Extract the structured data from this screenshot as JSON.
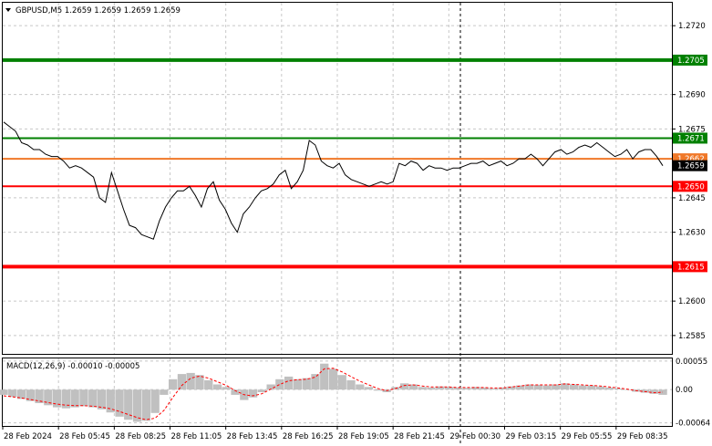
{
  "header": {
    "symbol_line": "GBPUSD,M5  1.2659 1.2659 1.2659 1.2659"
  },
  "macd": {
    "label": "MACD(12,26,9) -0.00010 -0.00005"
  },
  "colors": {
    "background": "#ffffff",
    "price_line": "#000000",
    "strong_resistance": "#008000",
    "resistance": "#008000",
    "support": "#ff0000",
    "strong_support": "#ff0000",
    "last_price_line": "#f07828",
    "macd_histogram": "#c0c0c0",
    "macd_signal": "#ff0000"
  },
  "chart_data": [
    {
      "type": "line",
      "title": "GBPUSD,M5",
      "xlabel": "",
      "ylabel": "",
      "ylim": [
        1.2577,
        1.273
      ],
      "yticks": [
        1.272,
        1.269,
        1.2675,
        1.2645,
        1.263,
        1.26,
        1.2585
      ],
      "x_tick_labels": [
        "28 Feb 2024",
        "28 Feb 05:45",
        "28 Feb 08:25",
        "28 Feb 11:05",
        "28 Feb 13:45",
        "28 Feb 16:25",
        "28 Feb 19:05",
        "28 Feb 21:45",
        "29 Feb 00:30",
        "29 Feb 03:15",
        "29 Feb 05:55",
        "29 Feb 08:35"
      ],
      "series": [
        {
          "name": "GBPUSD",
          "values": [
            1.2678,
            1.2676,
            1.2674,
            1.2669,
            1.2668,
            1.2666,
            1.2666,
            1.2664,
            1.2663,
            1.2663,
            1.2661,
            1.2658,
            1.2659,
            1.2658,
            1.2656,
            1.2654,
            1.2645,
            1.2643,
            1.2656,
            1.2648,
            1.264,
            1.2633,
            1.2632,
            1.2629,
            1.2628,
            1.2627,
            1.2635,
            1.2641,
            1.2645,
            1.2648,
            1.2648,
            1.265,
            1.2646,
            1.2641,
            1.2649,
            1.2652,
            1.2644,
            1.264,
            1.2634,
            1.263,
            1.2638,
            1.2641,
            1.2645,
            1.2648,
            1.2649,
            1.2651,
            1.2655,
            1.2657,
            1.2649,
            1.2652,
            1.2657,
            1.267,
            1.2668,
            1.2661,
            1.2659,
            1.2658,
            1.266,
            1.2655,
            1.2653,
            1.2652,
            1.2651,
            1.265,
            1.2651,
            1.2652,
            1.2651,
            1.2652,
            1.266,
            1.2659,
            1.2661,
            1.266,
            1.2657,
            1.2659,
            1.2658,
            1.2658,
            1.2657,
            1.2658,
            1.2658,
            1.2659,
            1.266,
            1.266,
            1.2661,
            1.2659,
            1.266,
            1.2661,
            1.2659,
            1.266,
            1.2662,
            1.2662,
            1.2664,
            1.2662,
            1.2659,
            1.2662,
            1.2665,
            1.2666,
            1.2664,
            1.2665,
            1.2667,
            1.2668,
            1.2667,
            1.2669,
            1.2667,
            1.2665,
            1.2663,
            1.2664,
            1.2666,
            1.2662,
            1.2665,
            1.2666,
            1.2666,
            1.2663,
            1.2659
          ]
        }
      ],
      "levels": [
        {
          "label": "1.2705",
          "value": 1.2705,
          "color": "#008000",
          "thick": true
        },
        {
          "label": "1.2671",
          "value": 1.2671,
          "color": "#008000",
          "thick": false
        },
        {
          "label": "1.2662",
          "value": 1.2662,
          "color": "#f07828",
          "thick": false
        },
        {
          "label": "1.2650",
          "value": 1.265,
          "color": "#ff0000",
          "thick": false
        },
        {
          "label": "1.2615",
          "value": 1.2615,
          "color": "#ff0000",
          "thick": true
        }
      ],
      "current_price": {
        "label": "1.2659",
        "value": 1.2659
      },
      "grid": true
    },
    {
      "type": "bar",
      "title": "MACD(12,26,9)",
      "ylim": [
        -0.0007,
        0.0006
      ],
      "yticks_labels": [
        "0.00055",
        "0.00",
        "-0.00064"
      ],
      "yticks_values": [
        0.00055,
        0.0,
        -0.00064
      ],
      "series": [
        {
          "name": "MACD",
          "values": [
            -0.0001,
            -0.00014,
            -0.00018,
            -0.00022,
            -0.00026,
            -0.0003,
            -0.00034,
            -0.00036,
            -0.00034,
            -0.00032,
            -0.00034,
            -0.00038,
            -0.00044,
            -0.00052,
            -0.00058,
            -0.00062,
            -0.0006,
            -0.00045,
            -0.0001,
            0.0002,
            0.0003,
            0.00032,
            0.00028,
            0.00018,
            0.0001,
            5e-05,
            -0.0001,
            -0.0002,
            -0.00015,
            -5e-05,
            0.0001,
            0.0002,
            0.00025,
            0.0002,
            0.00022,
            0.0003,
            0.0005,
            0.0004,
            0.00028,
            0.00018,
            0.0001,
            5e-05,
            -2e-05,
            -5e-05,
            5e-05,
            0.00012,
            0.0001,
            5e-05,
            4e-05,
            6e-05,
            5e-05,
            4e-05,
            3e-05,
            5e-05,
            4e-05,
            2e-05,
            4e-05,
            6e-05,
            8e-05,
            0.0001,
            9e-05,
            8e-05,
            0.0001,
            0.00012,
            0.0001,
            8e-05,
            8e-05,
            6e-05,
            4e-05,
            2e-05,
            0.0,
            -4e-05,
            -6e-05,
            -8e-05,
            -0.0001
          ]
        },
        {
          "name": "Signal",
          "values": [
            -0.00012,
            -0.00014,
            -0.00016,
            -0.00019,
            -0.00022,
            -0.00025,
            -0.00028,
            -0.0003,
            -0.00031,
            -0.00031,
            -0.00032,
            -0.00034,
            -0.00037,
            -0.00042,
            -0.00048,
            -0.00054,
            -0.00058,
            -0.00055,
            -0.0004,
            -0.00015,
            8e-05,
            0.00022,
            0.00026,
            0.00022,
            0.00015,
            8e-05,
            -2e-05,
            -0.0001,
            -0.00012,
            -8e-05,
            1e-05,
            0.0001,
            0.00017,
            0.00019,
            0.0002,
            0.00024,
            0.0004,
            0.00041,
            0.00034,
            0.00025,
            0.00016,
            9e-05,
            2e-05,
            -2e-05,
            2e-05,
            8e-05,
            9e-05,
            7e-05,
            5e-05,
            5e-05,
            5e-05,
            4e-05,
            4e-05,
            4e-05,
            4e-05,
            3e-05,
            3e-05,
            5e-05,
            7e-05,
            9e-05,
            9e-05,
            9e-05,
            9e-05,
            0.00011,
            0.0001,
            9e-05,
            8e-05,
            7e-05,
            5e-05,
            3e-05,
            1e-05,
            -2e-05,
            -4e-05,
            -6e-05,
            -5e-05
          ]
        }
      ],
      "grid": true
    }
  ]
}
